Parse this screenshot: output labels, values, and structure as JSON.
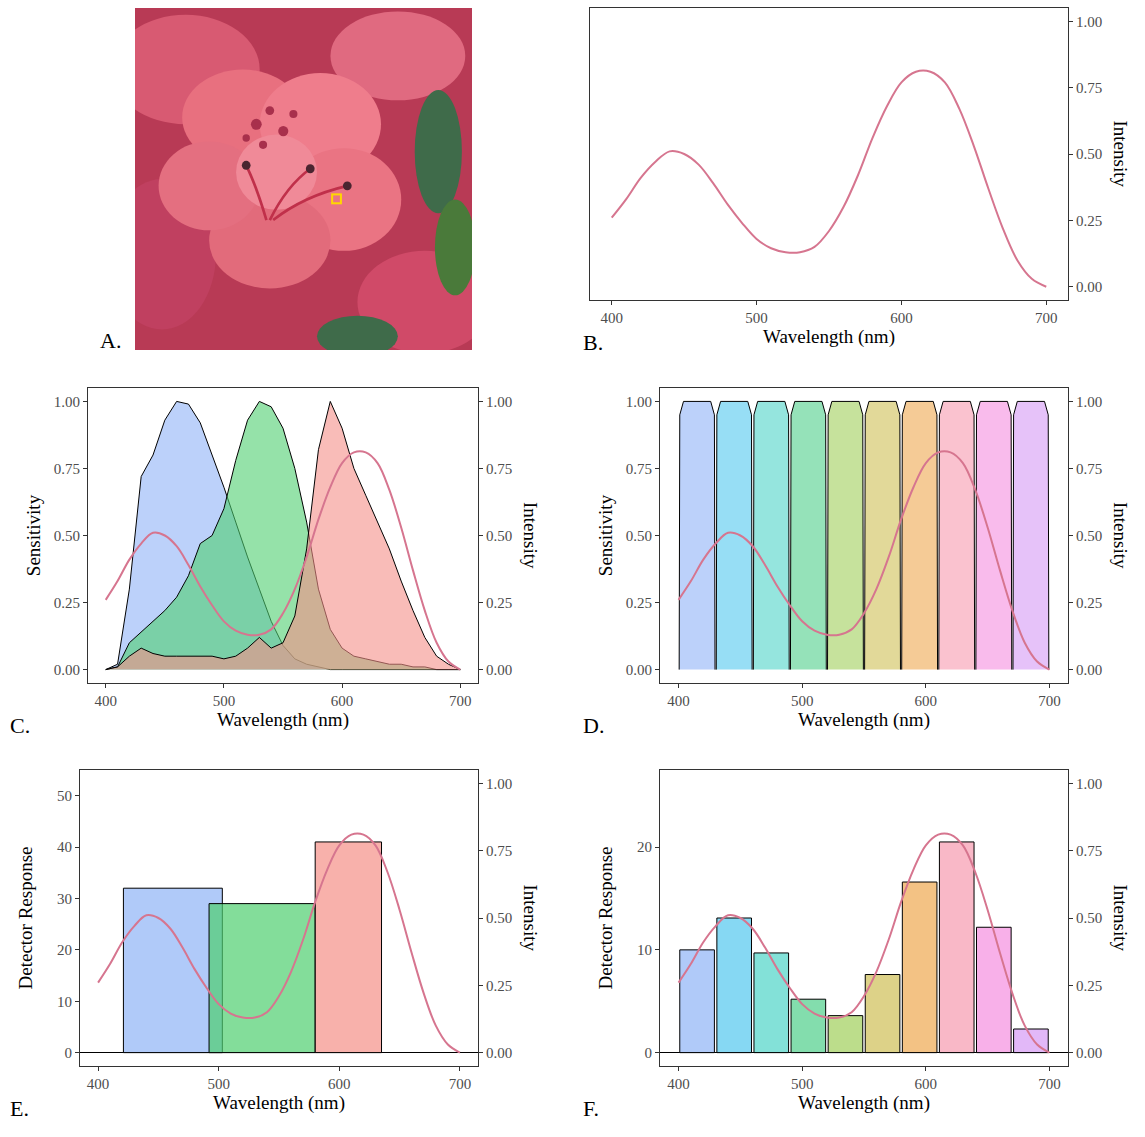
{
  "chart_data": [
    {
      "type": "image",
      "panel_label": "A."
    },
    {
      "type": "line",
      "panel_label": "B.",
      "xlabel": "Wavelength (nm)",
      "y2label": "Intensity",
      "grid": false,
      "xlim": [
        385,
        715
      ],
      "xticks": [
        400,
        500,
        600,
        700
      ],
      "y2lim": [
        -0.05,
        1.05
      ],
      "y2ticks": [
        {
          "value": 0,
          "label": "0.00"
        },
        {
          "value": 0.25,
          "label": "0.25"
        },
        {
          "value": 0.5,
          "label": "0.50"
        },
        {
          "value": 0.75,
          "label": "0.75"
        },
        {
          "value": 1,
          "label": "1.00"
        }
      ],
      "series": [
        {
          "type": "line",
          "axis": "y2",
          "color": "#d6758f",
          "x": [
            400,
            410,
            420,
            430,
            440,
            450,
            460,
            470,
            480,
            490,
            500,
            510,
            520,
            530,
            540,
            550,
            560,
            570,
            580,
            590,
            600,
            610,
            620,
            630,
            640,
            650,
            660,
            670,
            680,
            690,
            700
          ],
          "values": [
            0.26,
            0.33,
            0.41,
            0.47,
            0.51,
            0.5,
            0.46,
            0.39,
            0.31,
            0.24,
            0.18,
            0.145,
            0.13,
            0.13,
            0.15,
            0.21,
            0.3,
            0.42,
            0.56,
            0.68,
            0.77,
            0.81,
            0.81,
            0.77,
            0.67,
            0.53,
            0.37,
            0.22,
            0.1,
            0.03,
            0.0
          ]
        }
      ]
    },
    {
      "type": "area",
      "panel_label": "C.",
      "xlabel": "Wavelength (nm)",
      "ylabel": "Sensitivity",
      "y2label": "Intensity",
      "grid": false,
      "xlim": [
        385,
        715
      ],
      "xticks": [
        400,
        500,
        600,
        700
      ],
      "ylim": [
        -0.05,
        1.05
      ],
      "yticks": [
        {
          "value": 0,
          "label": "0.00"
        },
        {
          "value": 0.25,
          "label": "0.25"
        },
        {
          "value": 0.5,
          "label": "0.50"
        },
        {
          "value": 0.75,
          "label": "0.75"
        },
        {
          "value": 1,
          "label": "1.00"
        }
      ],
      "y2lim": [
        -0.05,
        1.05
      ],
      "y2ticks": [
        {
          "value": 0,
          "label": "0.00"
        },
        {
          "value": 0.25,
          "label": "0.25"
        },
        {
          "value": 0.5,
          "label": "0.50"
        },
        {
          "value": 0.75,
          "label": "0.75"
        },
        {
          "value": 1,
          "label": "1.00"
        }
      ],
      "series": [
        {
          "type": "area",
          "color": "#8fb3f7",
          "x": [
            400,
            410,
            420,
            430,
            440,
            450,
            460,
            470,
            480,
            490,
            500,
            510,
            520,
            530,
            540,
            550,
            560,
            570,
            580,
            590,
            600,
            610,
            620,
            630,
            640,
            650,
            660,
            670,
            680,
            690,
            700
          ],
          "values": [
            0,
            0.02,
            0.3,
            0.72,
            0.8,
            0.93,
            1.0,
            0.99,
            0.92,
            0.8,
            0.68,
            0.55,
            0.42,
            0.3,
            0.18,
            0.09,
            0.04,
            0.02,
            0.01,
            0,
            0,
            0,
            0,
            0,
            0,
            0,
            0,
            0,
            0,
            0,
            0
          ]
        },
        {
          "type": "area",
          "color": "#4fcf6f",
          "x": [
            400,
            410,
            420,
            430,
            440,
            450,
            460,
            470,
            480,
            490,
            500,
            510,
            520,
            530,
            540,
            550,
            560,
            570,
            580,
            590,
            600,
            610,
            620,
            630,
            640,
            650,
            660,
            670,
            680,
            690,
            700
          ],
          "values": [
            0,
            0.01,
            0.1,
            0.14,
            0.18,
            0.22,
            0.27,
            0.35,
            0.47,
            0.5,
            0.6,
            0.78,
            0.93,
            1.0,
            0.98,
            0.9,
            0.75,
            0.55,
            0.3,
            0.15,
            0.08,
            0.05,
            0.04,
            0.03,
            0.02,
            0.02,
            0.01,
            0.01,
            0,
            0,
            0
          ]
        },
        {
          "type": "area",
          "color": "#f59088",
          "x": [
            400,
            410,
            420,
            430,
            440,
            450,
            460,
            470,
            480,
            490,
            500,
            510,
            520,
            530,
            540,
            550,
            560,
            570,
            580,
            590,
            600,
            610,
            620,
            630,
            640,
            650,
            660,
            670,
            680,
            690,
            700
          ],
          "values": [
            0,
            0.01,
            0.05,
            0.08,
            0.06,
            0.05,
            0.05,
            0.05,
            0.05,
            0.05,
            0.04,
            0.05,
            0.08,
            0.12,
            0.08,
            0.1,
            0.2,
            0.45,
            0.82,
            1.0,
            0.9,
            0.75,
            0.65,
            0.55,
            0.45,
            0.33,
            0.22,
            0.12,
            0.05,
            0.02,
            0
          ]
        },
        {
          "type": "line",
          "axis": "y2",
          "color": "#d6758f",
          "x": [
            400,
            410,
            420,
            430,
            440,
            450,
            460,
            470,
            480,
            490,
            500,
            510,
            520,
            530,
            540,
            550,
            560,
            570,
            580,
            590,
            600,
            610,
            620,
            630,
            640,
            650,
            660,
            670,
            680,
            690,
            700
          ],
          "values": [
            0.26,
            0.33,
            0.41,
            0.47,
            0.51,
            0.5,
            0.46,
            0.39,
            0.31,
            0.24,
            0.18,
            0.145,
            0.13,
            0.13,
            0.15,
            0.21,
            0.3,
            0.42,
            0.56,
            0.68,
            0.77,
            0.81,
            0.81,
            0.77,
            0.67,
            0.53,
            0.37,
            0.22,
            0.1,
            0.03,
            0.0
          ]
        }
      ]
    },
    {
      "type": "area",
      "panel_label": "D.",
      "xlabel": "Wavelength (nm)",
      "ylabel": "Sensitivity",
      "y2label": "Intensity",
      "grid": false,
      "xlim": [
        385,
        715
      ],
      "xticks": [
        400,
        500,
        600,
        700
      ],
      "ylim": [
        -0.05,
        1.05
      ],
      "yticks": [
        {
          "value": 0,
          "label": "0.00"
        },
        {
          "value": 0.25,
          "label": "0.25"
        },
        {
          "value": 0.5,
          "label": "0.50"
        },
        {
          "value": 0.75,
          "label": "0.75"
        },
        {
          "value": 1,
          "label": "1.00"
        }
      ],
      "y2lim": [
        -0.05,
        1.05
      ],
      "y2ticks": [
        {
          "value": 0,
          "label": "0.00"
        },
        {
          "value": 0.25,
          "label": "0.25"
        },
        {
          "value": 0.5,
          "label": "0.50"
        },
        {
          "value": 0.75,
          "label": "0.75"
        },
        {
          "value": 1,
          "label": "1.00"
        }
      ],
      "series": [
        {
          "type": "area",
          "color": "#8fb3f7",
          "x": [
            400.5,
            401,
            404,
            426,
            429,
            429.5
          ],
          "values": [
            0,
            0.95,
            1,
            1,
            0.95,
            0
          ]
        },
        {
          "type": "area",
          "color": "#52c8ee",
          "x": [
            430.5,
            431,
            434,
            456,
            459,
            459.5
          ],
          "values": [
            0,
            0.95,
            1,
            1,
            0.95,
            0
          ]
        },
        {
          "type": "area",
          "color": "#4fd4c8",
          "x": [
            460.5,
            461,
            464,
            486,
            489,
            489.5
          ],
          "values": [
            0,
            0.95,
            1,
            1,
            0.95,
            0
          ]
        },
        {
          "type": "area",
          "color": "#4fcf8a",
          "x": [
            490.5,
            491,
            494,
            516,
            519,
            519.5
          ],
          "values": [
            0,
            0.95,
            1,
            1,
            0.95,
            0
          ]
        },
        {
          "type": "area",
          "color": "#a0cf5a",
          "x": [
            520.5,
            521,
            524,
            546,
            549,
            549.5
          ],
          "values": [
            0,
            0.95,
            1,
            1,
            0.95,
            0
          ]
        },
        {
          "type": "area",
          "color": "#cfbf55",
          "x": [
            550.5,
            551,
            554,
            576,
            579,
            579.5
          ],
          "values": [
            0,
            0.95,
            1,
            1,
            0.95,
            0
          ]
        },
        {
          "type": "area",
          "color": "#eea850",
          "x": [
            580.5,
            581,
            584,
            606,
            609,
            609.5
          ],
          "values": [
            0,
            0.95,
            1,
            1,
            0.95,
            0
          ]
        },
        {
          "type": "area",
          "color": "#f79aaf",
          "x": [
            610.5,
            611,
            614,
            636,
            639,
            639.5
          ],
          "values": [
            0,
            0.95,
            1,
            1,
            0.95,
            0
          ]
        },
        {
          "type": "area",
          "color": "#f58ee0",
          "x": [
            640.5,
            641,
            644,
            666,
            669,
            669.5
          ],
          "values": [
            0,
            0.95,
            1,
            1,
            0.95,
            0
          ]
        },
        {
          "type": "area",
          "color": "#d59af5",
          "x": [
            670.5,
            671,
            674,
            696,
            699,
            699.5
          ],
          "values": [
            0,
            0.95,
            1,
            1,
            0.95,
            0
          ]
        },
        {
          "type": "line",
          "axis": "y2",
          "color": "#d6758f",
          "x": [
            400,
            410,
            420,
            430,
            440,
            450,
            460,
            470,
            480,
            490,
            500,
            510,
            520,
            530,
            540,
            550,
            560,
            570,
            580,
            590,
            600,
            610,
            620,
            630,
            640,
            650,
            660,
            670,
            680,
            690,
            700
          ],
          "values": [
            0.26,
            0.33,
            0.41,
            0.47,
            0.51,
            0.5,
            0.46,
            0.39,
            0.31,
            0.24,
            0.18,
            0.145,
            0.13,
            0.13,
            0.15,
            0.21,
            0.3,
            0.42,
            0.56,
            0.68,
            0.77,
            0.81,
            0.81,
            0.77,
            0.67,
            0.53,
            0.37,
            0.22,
            0.1,
            0.03,
            0.0
          ]
        }
      ]
    },
    {
      "type": "bar",
      "panel_label": "E.",
      "xlabel": "Wavelength (nm)",
      "ylabel": "Detector Response",
      "y2label": "Intensity",
      "grid": false,
      "xlim": [
        385,
        715
      ],
      "xticks": [
        400,
        500,
        600,
        700
      ],
      "ylim": [
        -2.6,
        55
      ],
      "yticks": [
        0,
        10,
        20,
        30,
        40,
        50
      ],
      "y2lim": [
        -0.05,
        1.05
      ],
      "y2ticks": [
        {
          "value": 0,
          "label": "0.00"
        },
        {
          "value": 0.25,
          "label": "0.25"
        },
        {
          "value": 0.5,
          "label": "0.50"
        },
        {
          "value": 0.75,
          "label": "0.75"
        },
        {
          "value": 1,
          "label": "1.00"
        }
      ],
      "series": [
        {
          "type": "bar",
          "x": [
            462,
            536,
            607.5
          ],
          "widths": [
            82,
            88,
            55
          ],
          "values": [
            32,
            29,
            41
          ],
          "colors": [
            "#8fb3f7",
            "#4fcf6f",
            "#f59088"
          ]
        },
        {
          "type": "line",
          "axis": "y2",
          "color": "#d6758f",
          "x": [
            400,
            410,
            420,
            430,
            440,
            450,
            460,
            470,
            480,
            490,
            500,
            510,
            520,
            530,
            540,
            550,
            560,
            570,
            580,
            590,
            600,
            610,
            620,
            630,
            640,
            650,
            660,
            670,
            680,
            690,
            700
          ],
          "values": [
            0.26,
            0.33,
            0.41,
            0.47,
            0.51,
            0.5,
            0.46,
            0.39,
            0.31,
            0.24,
            0.18,
            0.145,
            0.13,
            0.13,
            0.15,
            0.21,
            0.3,
            0.42,
            0.56,
            0.68,
            0.77,
            0.81,
            0.81,
            0.77,
            0.67,
            0.53,
            0.37,
            0.22,
            0.1,
            0.03,
            0.0
          ]
        }
      ]
    },
    {
      "type": "bar",
      "panel_label": "F.",
      "xlabel": "Wavelength (nm)",
      "ylabel": "Detector Response",
      "y2label": "Intensity",
      "grid": false,
      "xlim": [
        385,
        715
      ],
      "xticks": [
        400,
        500,
        600,
        700
      ],
      "ylim": [
        -1.3,
        27.5
      ],
      "yticks": [
        0,
        10,
        20
      ],
      "y2lim": [
        -0.05,
        1.05
      ],
      "y2ticks": [
        {
          "value": 0,
          "label": "0.00"
        },
        {
          "value": 0.25,
          "label": "0.25"
        },
        {
          "value": 0.5,
          "label": "0.50"
        },
        {
          "value": 0.75,
          "label": "0.75"
        },
        {
          "value": 1,
          "label": "1.00"
        }
      ],
      "series": [
        {
          "type": "bar",
          "x": [
            415,
            445,
            475,
            505,
            535,
            565,
            595,
            625,
            655,
            685
          ],
          "widths": [
            28,
            28,
            28,
            28,
            28,
            28,
            28,
            28,
            28,
            28
          ],
          "values": [
            10.0,
            13.1,
            9.7,
            5.2,
            3.6,
            7.6,
            16.6,
            20.5,
            12.2,
            2.3
          ],
          "colors": [
            "#8fb3f7",
            "#52c8ee",
            "#4fd4c8",
            "#4fcf8a",
            "#a0cf5a",
            "#cfbf55",
            "#eea850",
            "#f79aaf",
            "#f58ee0",
            "#d59af5"
          ]
        },
        {
          "type": "line",
          "axis": "y2",
          "color": "#d6758f",
          "x": [
            400,
            410,
            420,
            430,
            440,
            450,
            460,
            470,
            480,
            490,
            500,
            510,
            520,
            530,
            540,
            550,
            560,
            570,
            580,
            590,
            600,
            610,
            620,
            630,
            640,
            650,
            660,
            670,
            680,
            690,
            700
          ],
          "values": [
            0.26,
            0.33,
            0.41,
            0.47,
            0.51,
            0.5,
            0.46,
            0.39,
            0.31,
            0.24,
            0.18,
            0.145,
            0.13,
            0.13,
            0.15,
            0.21,
            0.3,
            0.42,
            0.56,
            0.68,
            0.77,
            0.81,
            0.81,
            0.77,
            0.67,
            0.53,
            0.37,
            0.22,
            0.1,
            0.03,
            0.0
          ]
        }
      ]
    }
  ]
}
